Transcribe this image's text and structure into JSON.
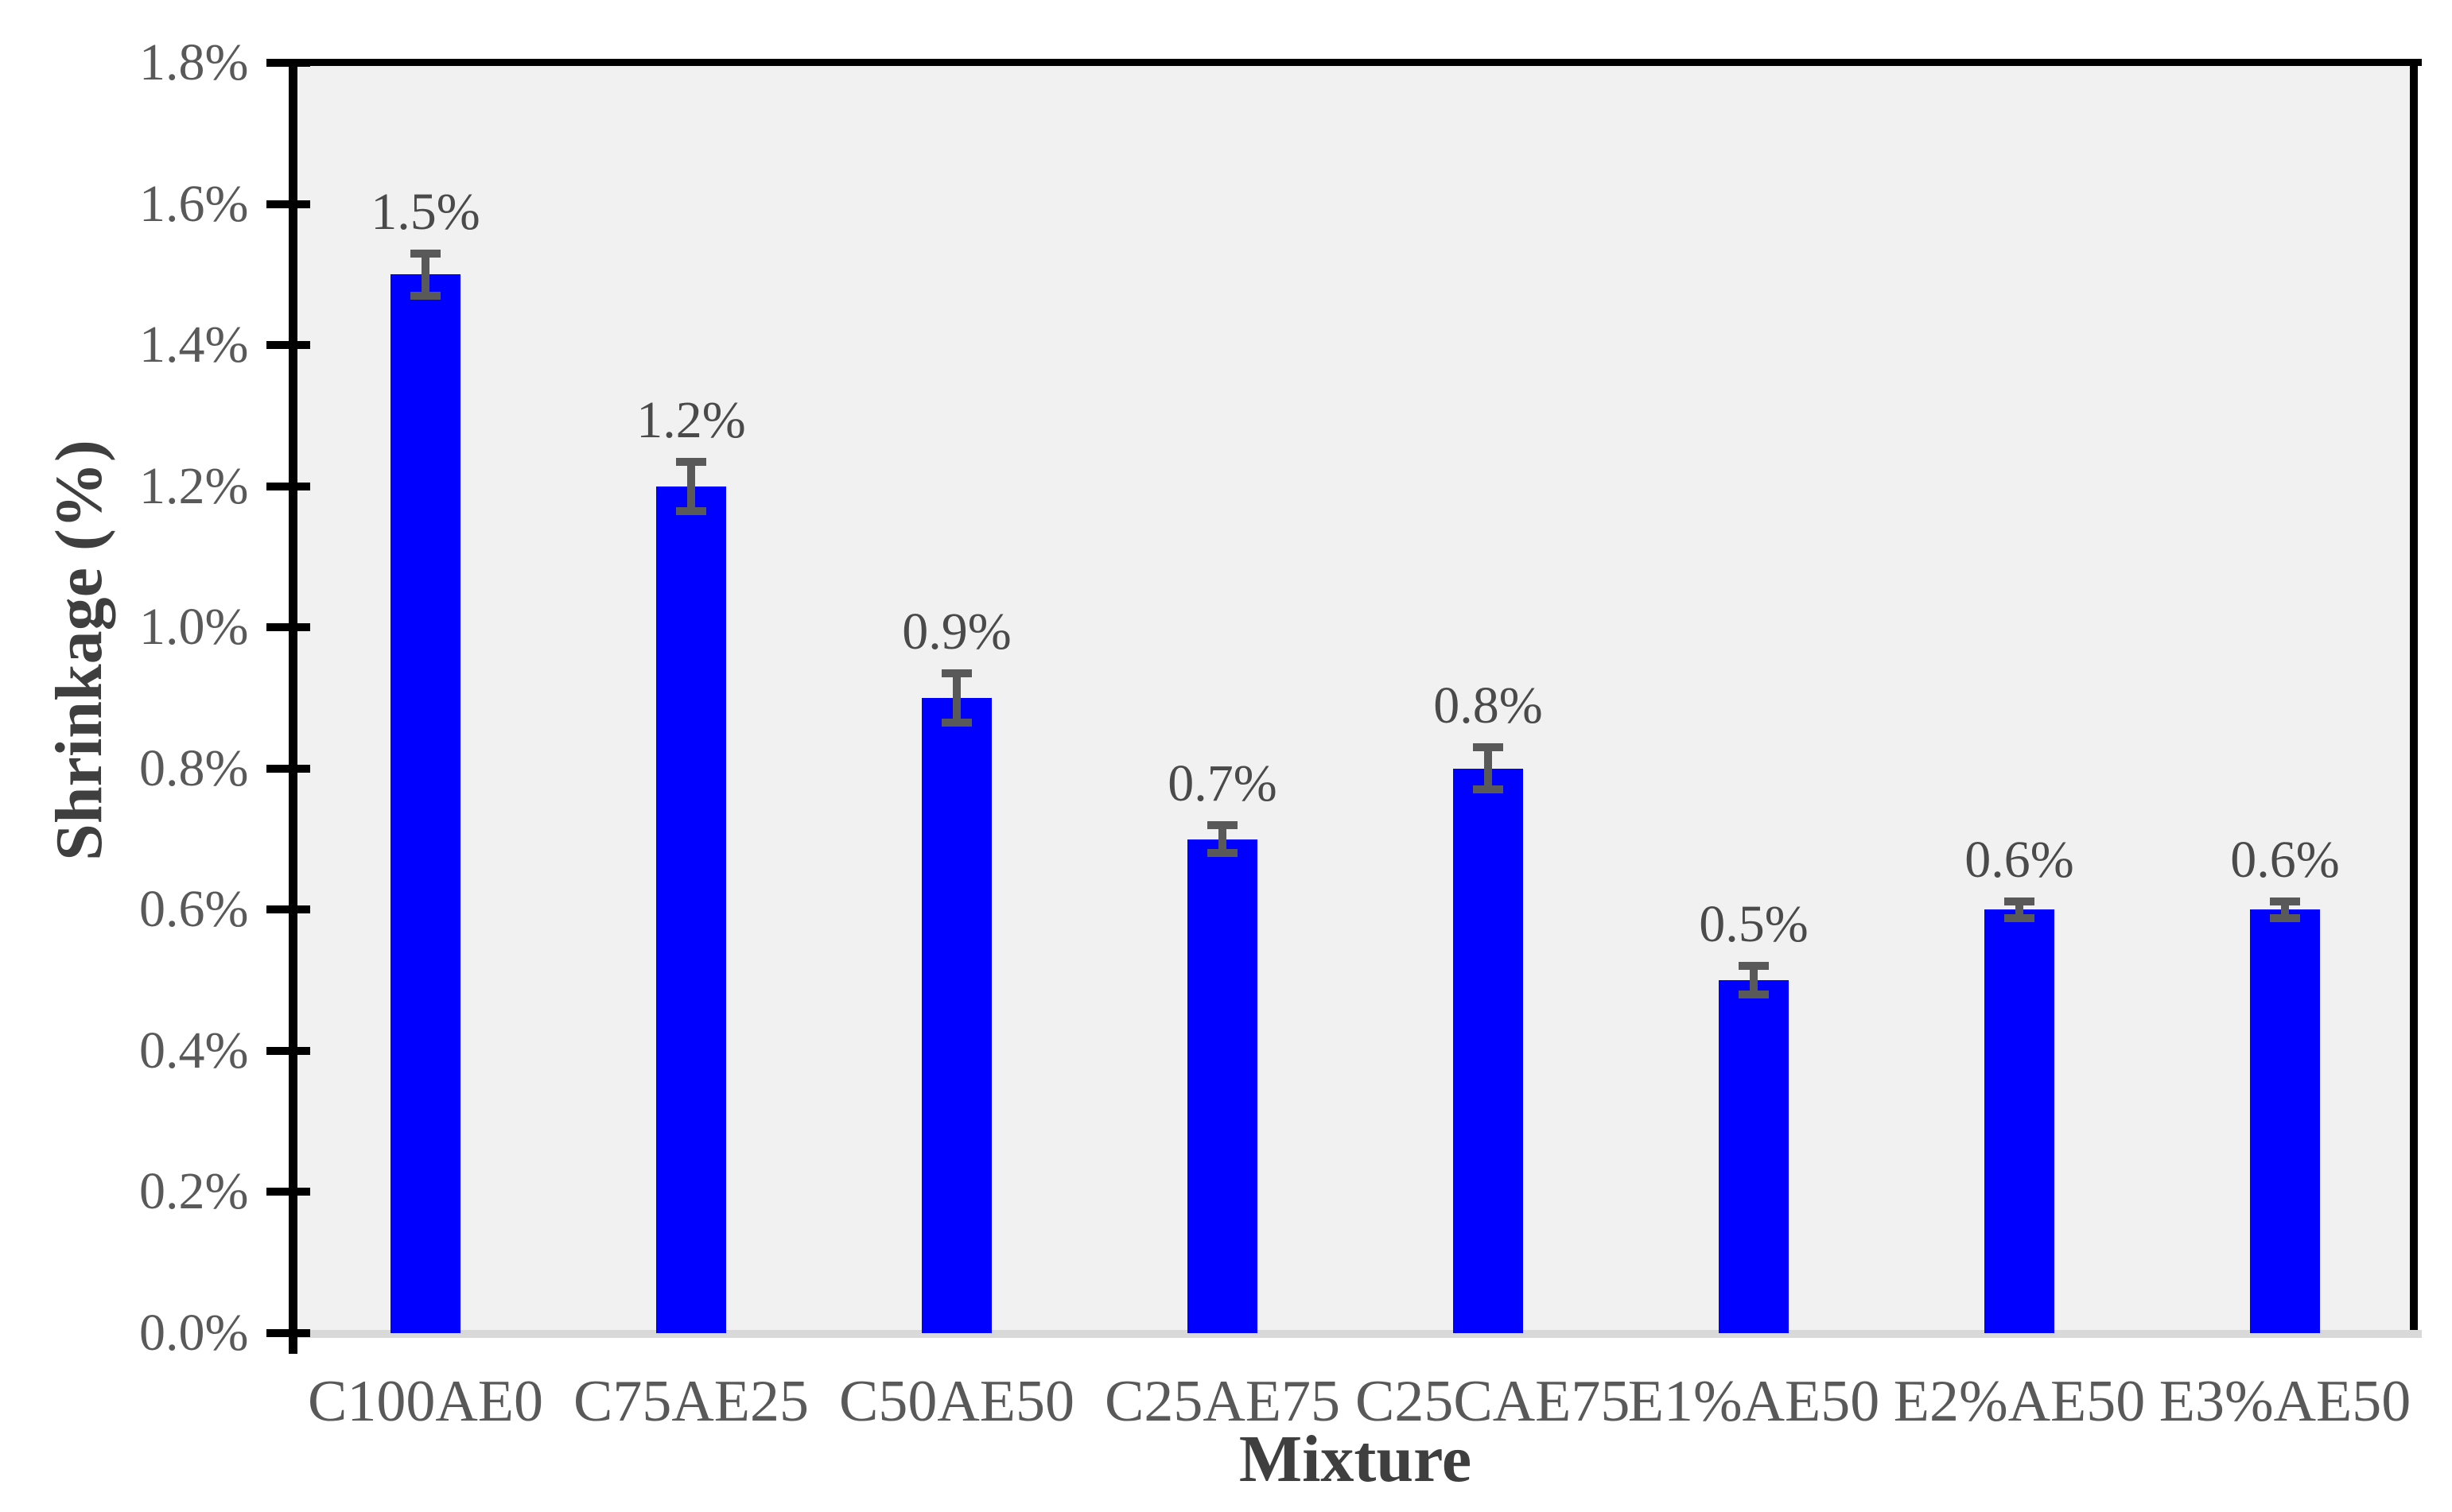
{
  "chart_data": {
    "type": "bar",
    "title": "",
    "xlabel": "Mixture",
    "ylabel": "Shrinkage (%)",
    "categories": [
      "C100AE0",
      "C75AE25",
      "C50AE50",
      "C25AE75",
      "C25CAE75",
      "E1%AE50",
      "E2%AE50",
      "E3%AE50"
    ],
    "values": [
      1.5,
      1.2,
      0.9,
      0.7,
      0.8,
      0.5,
      0.6,
      0.6
    ],
    "value_labels": [
      "1.5%",
      "1.2%",
      "0.9%",
      "0.7%",
      "0.8%",
      "0.5%",
      "0.6%",
      "0.6%"
    ],
    "error_bars": [
      0.03,
      0.035,
      0.035,
      0.02,
      0.03,
      0.02,
      0.012,
      0.012
    ],
    "ylim": [
      0,
      1.8
    ],
    "ytick_step": 0.2,
    "ytick_labels": [
      "0.0%",
      "0.2%",
      "0.4%",
      "0.6%",
      "0.8%",
      "1.0%",
      "1.2%",
      "1.4%",
      "1.6%",
      "1.8%"
    ],
    "grid": false,
    "legend": "none",
    "colors": {
      "bar": "#0000fe",
      "error_bar": "#595959",
      "tick_label": "#595959",
      "data_label": "#4a4a4a",
      "axis_title": "#3f3f3f",
      "plot_background": "#f1f1f1",
      "page_background": "#ffffff",
      "axis_line": "#000000",
      "x_axis_line": "#d9d9d9"
    }
  }
}
